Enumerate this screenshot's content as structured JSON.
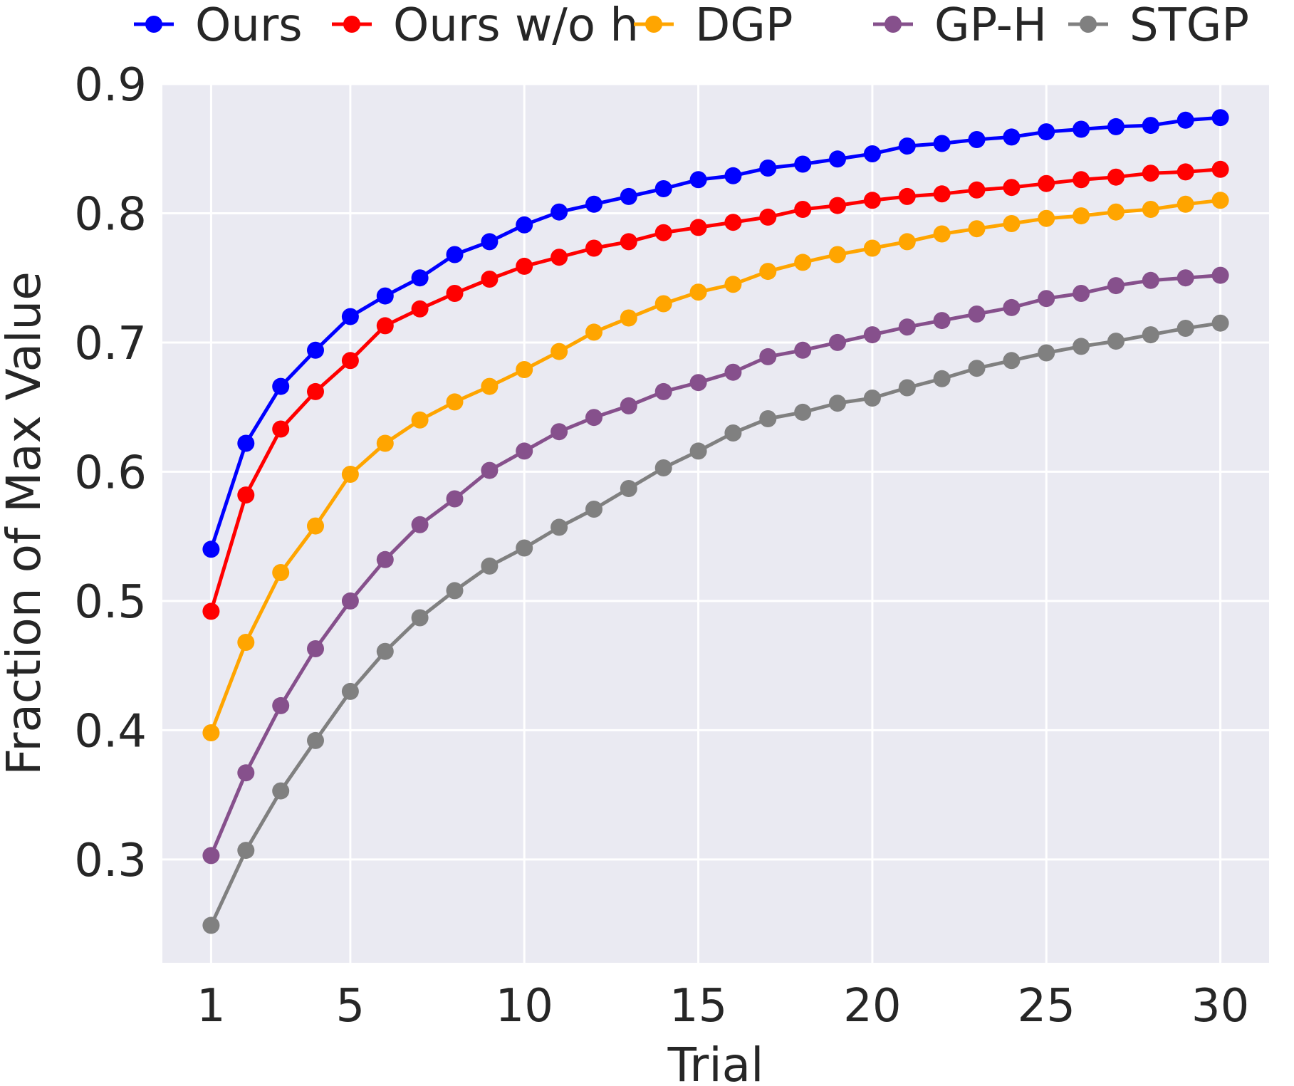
{
  "chart_data": {
    "type": "line",
    "title": "",
    "xlabel": "Trial",
    "ylabel": "Fraction of Max Value",
    "xlim": [
      -0.4,
      31.4
    ],
    "ylim": [
      0.22,
      0.9
    ],
    "x_ticks": [
      1,
      5,
      10,
      15,
      20,
      25,
      30
    ],
    "y_ticks": [
      0.3,
      0.4,
      0.5,
      0.6,
      0.7,
      0.8,
      0.9
    ],
    "grid": true,
    "legend_position": "top",
    "x": [
      1,
      2,
      3,
      4,
      5,
      6,
      7,
      8,
      9,
      10,
      11,
      12,
      13,
      14,
      15,
      16,
      17,
      18,
      19,
      20,
      21,
      22,
      23,
      24,
      25,
      26,
      27,
      28,
      29,
      30
    ],
    "series": [
      {
        "name": "Ours",
        "color": "#0000ff",
        "values": [
          0.54,
          0.622,
          0.666,
          0.694,
          0.72,
          0.736,
          0.75,
          0.768,
          0.778,
          0.791,
          0.801,
          0.807,
          0.813,
          0.819,
          0.826,
          0.829,
          0.835,
          0.838,
          0.842,
          0.846,
          0.852,
          0.854,
          0.857,
          0.859,
          0.863,
          0.865,
          0.867,
          0.868,
          0.872,
          0.874
        ]
      },
      {
        "name": "Ours w/o h",
        "color": "#ff0000",
        "values": [
          0.492,
          0.582,
          0.633,
          0.662,
          0.686,
          0.713,
          0.726,
          0.738,
          0.749,
          0.759,
          0.766,
          0.773,
          0.778,
          0.785,
          0.789,
          0.793,
          0.797,
          0.803,
          0.806,
          0.81,
          0.813,
          0.815,
          0.818,
          0.82,
          0.823,
          0.826,
          0.828,
          0.831,
          0.832,
          0.834
        ]
      },
      {
        "name": "DGP",
        "color": "#ffa500",
        "values": [
          0.398,
          0.468,
          0.522,
          0.558,
          0.598,
          0.622,
          0.64,
          0.654,
          0.666,
          0.679,
          0.693,
          0.708,
          0.719,
          0.73,
          0.739,
          0.745,
          0.755,
          0.762,
          0.768,
          0.773,
          0.778,
          0.784,
          0.788,
          0.792,
          0.796,
          0.798,
          0.801,
          0.803,
          0.807,
          0.81
        ]
      },
      {
        "name": "GP-H",
        "color": "#86508c",
        "values": [
          0.303,
          0.367,
          0.419,
          0.463,
          0.5,
          0.532,
          0.559,
          0.579,
          0.601,
          0.616,
          0.631,
          0.642,
          0.651,
          0.662,
          0.669,
          0.677,
          0.689,
          0.694,
          0.7,
          0.706,
          0.712,
          0.717,
          0.722,
          0.727,
          0.734,
          0.738,
          0.744,
          0.748,
          0.75,
          0.752
        ]
      },
      {
        "name": "STGP",
        "color": "#808080",
        "values": [
          0.249,
          0.307,
          0.353,
          0.392,
          0.43,
          0.461,
          0.487,
          0.508,
          0.527,
          0.541,
          0.557,
          0.571,
          0.587,
          0.603,
          0.616,
          0.63,
          0.641,
          0.646,
          0.653,
          0.657,
          0.665,
          0.672,
          0.68,
          0.686,
          0.692,
          0.697,
          0.701,
          0.706,
          0.711,
          0.715
        ]
      }
    ]
  }
}
